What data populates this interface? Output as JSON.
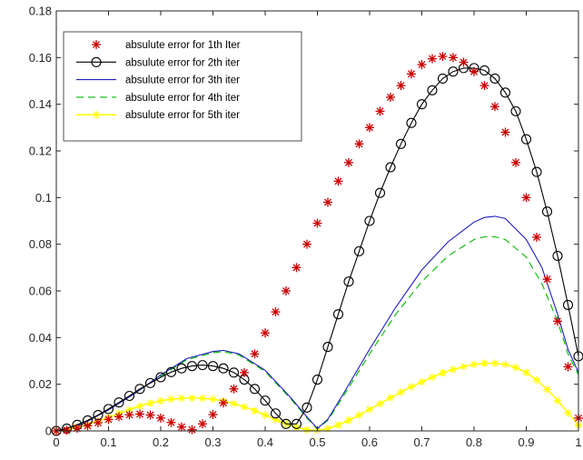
{
  "chart_data": {
    "type": "line",
    "title": "",
    "xlabel": "",
    "ylabel": "",
    "xlim": [
      0,
      1
    ],
    "ylim": [
      0,
      0.18
    ],
    "xticks": [
      0,
      0.1,
      0.2,
      0.3,
      0.4,
      0.5,
      0.6,
      0.7,
      0.8,
      0.9,
      1
    ],
    "xtick_labels": [
      "0",
      "0.1",
      "0.2",
      "0.3",
      "0.4",
      "0.5",
      "0.6",
      "0.7",
      "0.8",
      "0.9",
      "1"
    ],
    "yticks": [
      0,
      0.02,
      0.04,
      0.06,
      0.08,
      0.1,
      0.12,
      0.14,
      0.16,
      0.18
    ],
    "ytick_labels": [
      "0",
      "0.02",
      "0.04",
      "0.06",
      "0.08",
      "0.1",
      "0.12",
      "0.14",
      "0.16",
      "0.18"
    ],
    "grid": false,
    "legend_position": "top-left",
    "series": [
      {
        "name": "absulute error for 1th Iter",
        "color": "#cc0000",
        "style": "markers-asterisk",
        "x": [
          0,
          0.02,
          0.04,
          0.06,
          0.08,
          0.1,
          0.12,
          0.14,
          0.16,
          0.18,
          0.2,
          0.22,
          0.24,
          0.26,
          0.28,
          0.3,
          0.32,
          0.34,
          0.36,
          0.38,
          0.4,
          0.42,
          0.44,
          0.46,
          0.48,
          0.5,
          0.52,
          0.54,
          0.56,
          0.58,
          0.6,
          0.62,
          0.64,
          0.66,
          0.68,
          0.7,
          0.72,
          0.74,
          0.76,
          0.78,
          0.8,
          0.82,
          0.84,
          0.86,
          0.88,
          0.9,
          0.92,
          0.94,
          0.96,
          0.98,
          1
        ],
        "y": [
          0,
          0.0003,
          0.0011,
          0.0022,
          0.0035,
          0.0049,
          0.0061,
          0.0069,
          0.0072,
          0.0068,
          0.0055,
          0.0036,
          0.0017,
          0.0005,
          0.003,
          0.007,
          0.012,
          0.018,
          0.025,
          0.033,
          0.042,
          0.051,
          0.06,
          0.07,
          0.08,
          0.089,
          0.098,
          0.107,
          0.115,
          0.123,
          0.13,
          0.137,
          0.143,
          0.148,
          0.153,
          0.157,
          0.1595,
          0.1605,
          0.16,
          0.158,
          0.154,
          0.148,
          0.139,
          0.128,
          0.115,
          0.1,
          0.083,
          0.065,
          0.047,
          0.0275,
          0.0055
        ]
      },
      {
        "name": "absulute error for 2th iter",
        "color": "#000000",
        "style": "line-circles",
        "x": [
          0,
          0.02,
          0.04,
          0.06,
          0.08,
          0.1,
          0.12,
          0.14,
          0.16,
          0.18,
          0.2,
          0.22,
          0.24,
          0.26,
          0.28,
          0.3,
          0.32,
          0.34,
          0.36,
          0.38,
          0.4,
          0.42,
          0.44,
          0.46,
          0.48,
          0.5,
          0.52,
          0.54,
          0.56,
          0.58,
          0.6,
          0.62,
          0.64,
          0.66,
          0.68,
          0.7,
          0.72,
          0.74,
          0.76,
          0.78,
          0.8,
          0.82,
          0.84,
          0.86,
          0.88,
          0.9,
          0.92,
          0.94,
          0.96,
          0.98,
          1
        ],
        "y": [
          0,
          0.001,
          0.0026,
          0.0045,
          0.0068,
          0.0094,
          0.0122,
          0.015,
          0.018,
          0.0205,
          0.023,
          0.0252,
          0.0268,
          0.0278,
          0.0282,
          0.0278,
          0.0268,
          0.025,
          0.022,
          0.018,
          0.013,
          0.0075,
          0.003,
          0.003,
          0.01,
          0.022,
          0.036,
          0.05,
          0.064,
          0.077,
          0.09,
          0.102,
          0.113,
          0.123,
          0.132,
          0.14,
          0.146,
          0.151,
          0.154,
          0.1555,
          0.1555,
          0.1545,
          0.151,
          0.145,
          0.137,
          0.125,
          0.111,
          0.094,
          0.075,
          0.054,
          0.032
        ]
      },
      {
        "name": "absulute error for 3th iter",
        "color": "#1f1fbf",
        "style": "solid",
        "x": [
          0,
          0.05,
          0.1,
          0.15,
          0.2,
          0.25,
          0.3,
          0.32,
          0.35,
          0.4,
          0.45,
          0.48,
          0.5,
          0.52,
          0.55,
          0.6,
          0.65,
          0.7,
          0.75,
          0.8,
          0.82,
          0.84,
          0.86,
          0.9,
          0.93,
          0.96,
          0.98,
          1
        ],
        "y": [
          0,
          0.003,
          0.009,
          0.016,
          0.024,
          0.031,
          0.034,
          0.0345,
          0.033,
          0.026,
          0.014,
          0.006,
          0.001,
          0.005,
          0.016,
          0.035,
          0.053,
          0.069,
          0.081,
          0.0895,
          0.0915,
          0.092,
          0.091,
          0.082,
          0.07,
          0.05,
          0.035,
          0.025
        ]
      },
      {
        "name": "absulute error for 4th iter",
        "color": "#00bb00",
        "style": "dashed",
        "x": [
          0,
          0.05,
          0.1,
          0.15,
          0.2,
          0.25,
          0.3,
          0.32,
          0.35,
          0.4,
          0.45,
          0.48,
          0.5,
          0.52,
          0.55,
          0.6,
          0.65,
          0.7,
          0.75,
          0.8,
          0.82,
          0.84,
          0.86,
          0.9,
          0.93,
          0.96,
          0.98,
          1
        ],
        "y": [
          0,
          0.003,
          0.009,
          0.016,
          0.0235,
          0.0305,
          0.0335,
          0.034,
          0.0325,
          0.0255,
          0.0135,
          0.0055,
          0.0008,
          0.0045,
          0.015,
          0.033,
          0.05,
          0.064,
          0.075,
          0.082,
          0.0832,
          0.0832,
          0.082,
          0.0745,
          0.063,
          0.047,
          0.033,
          0.024
        ]
      },
      {
        "name": "absulute error for 5th iter",
        "color": "#ffff00",
        "style": "line-asterisk",
        "x": [
          0,
          0.02,
          0.04,
          0.06,
          0.08,
          0.1,
          0.12,
          0.14,
          0.16,
          0.18,
          0.2,
          0.22,
          0.24,
          0.26,
          0.28,
          0.3,
          0.32,
          0.34,
          0.36,
          0.38,
          0.4,
          0.42,
          0.44,
          0.46,
          0.48,
          0.5,
          0.52,
          0.54,
          0.56,
          0.58,
          0.6,
          0.62,
          0.64,
          0.66,
          0.68,
          0.7,
          0.72,
          0.74,
          0.76,
          0.78,
          0.8,
          0.82,
          0.84,
          0.86,
          0.88,
          0.9,
          0.92,
          0.94,
          0.96,
          0.98,
          1
        ],
        "y": [
          0,
          0.0006,
          0.0016,
          0.0028,
          0.0042,
          0.0058,
          0.0075,
          0.0091,
          0.0106,
          0.0119,
          0.0129,
          0.0136,
          0.014,
          0.0141,
          0.014,
          0.0136,
          0.0128,
          0.0117,
          0.0103,
          0.0087,
          0.0068,
          0.0048,
          0.003,
          0.0015,
          0.0005,
          0.0002,
          0.001,
          0.0025,
          0.0045,
          0.0068,
          0.0092,
          0.0117,
          0.0142,
          0.0166,
          0.0189,
          0.021,
          0.023,
          0.0248,
          0.0263,
          0.0275,
          0.0285,
          0.029,
          0.029,
          0.0285,
          0.0272,
          0.025,
          0.0218,
          0.0178,
          0.013,
          0.0077,
          0.0025
        ]
      }
    ]
  }
}
